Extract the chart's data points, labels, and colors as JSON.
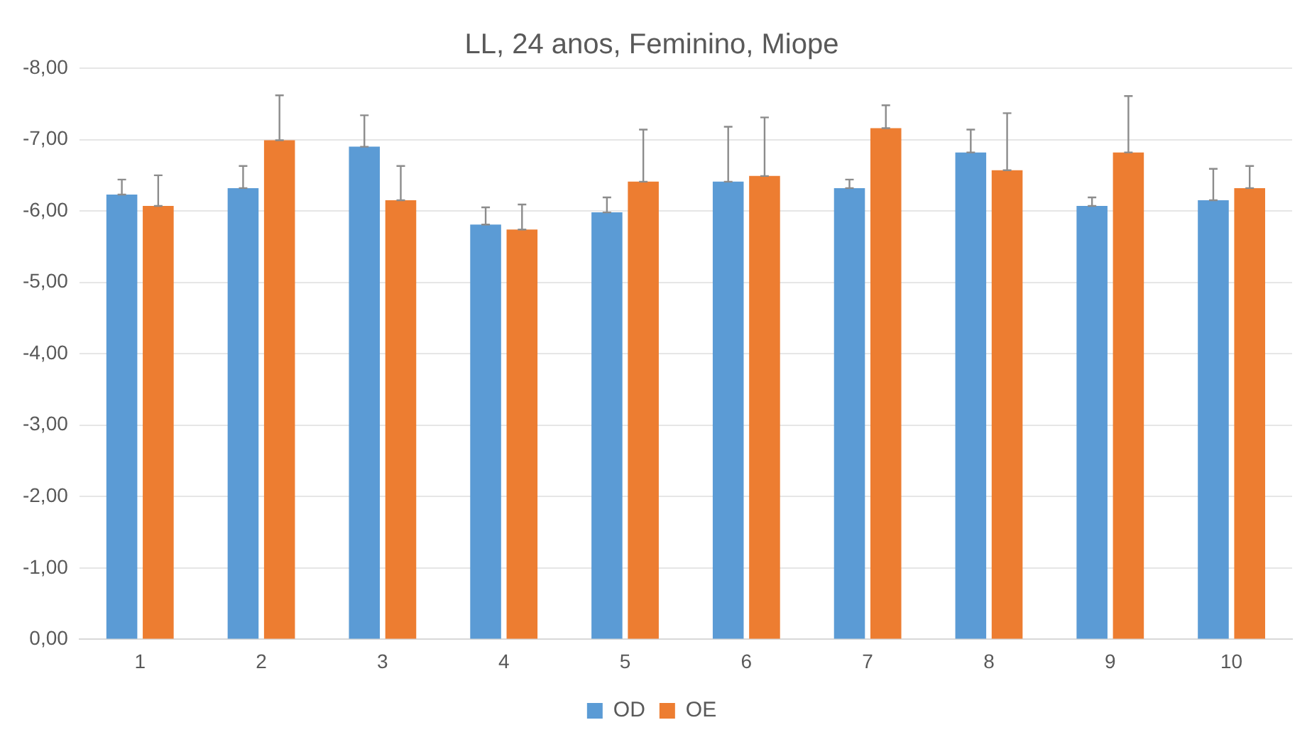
{
  "chart_data": {
    "type": "bar",
    "title": "LL, 24 anos, Feminino, Miope",
    "categories": [
      "1",
      "2",
      "3",
      "4",
      "5",
      "6",
      "7",
      "8",
      "9",
      "10"
    ],
    "series": [
      {
        "name": "OD",
        "color": "#5b9bd5",
        "values": [
          -6.23,
          -6.32,
          -6.9,
          -5.81,
          -5.98,
          -6.41,
          -6.32,
          -6.82,
          -6.07,
          -6.15
        ],
        "errors": [
          [
            -6.44,
            -6.23
          ],
          [
            -6.63,
            -6.32
          ],
          [
            -7.34,
            -6.9
          ],
          [
            -6.05,
            -5.81
          ],
          [
            -6.19,
            -5.98
          ],
          [
            -7.18,
            -6.41
          ],
          [
            -6.44,
            -6.32
          ],
          [
            -7.14,
            -6.82
          ],
          [
            -6.19,
            -6.07
          ],
          [
            -6.59,
            -6.15
          ]
        ]
      },
      {
        "name": "OE",
        "color": "#ed7d31",
        "values": [
          -6.07,
          -6.99,
          -6.15,
          -5.74,
          -6.41,
          -6.49,
          -7.16,
          -6.57,
          -6.82,
          -6.32
        ],
        "errors": [
          [
            -6.5,
            -6.07
          ],
          [
            -7.62,
            -6.99
          ],
          [
            -6.63,
            -6.15
          ],
          [
            -6.09,
            -5.74
          ],
          [
            -7.14,
            -6.41
          ],
          [
            -7.31,
            -6.49
          ],
          [
            -7.48,
            -7.16
          ],
          [
            -7.37,
            -6.57
          ],
          [
            -7.61,
            -6.82
          ],
          [
            -6.63,
            -6.32
          ]
        ]
      }
    ],
    "ylim": [
      0,
      -8
    ],
    "yticks": [
      {
        "value": -8,
        "label": "-8,00"
      },
      {
        "value": -7,
        "label": "-7,00"
      },
      {
        "value": -6,
        "label": "-6,00"
      },
      {
        "value": -5,
        "label": "-5,00"
      },
      {
        "value": -4,
        "label": "-4,00"
      },
      {
        "value": -3,
        "label": "-3,00"
      },
      {
        "value": -2,
        "label": "-2,00"
      },
      {
        "value": -1,
        "label": "-1,00"
      },
      {
        "value": 0,
        "label": "0,00"
      }
    ],
    "grid": "y",
    "legend": "bottom"
  }
}
